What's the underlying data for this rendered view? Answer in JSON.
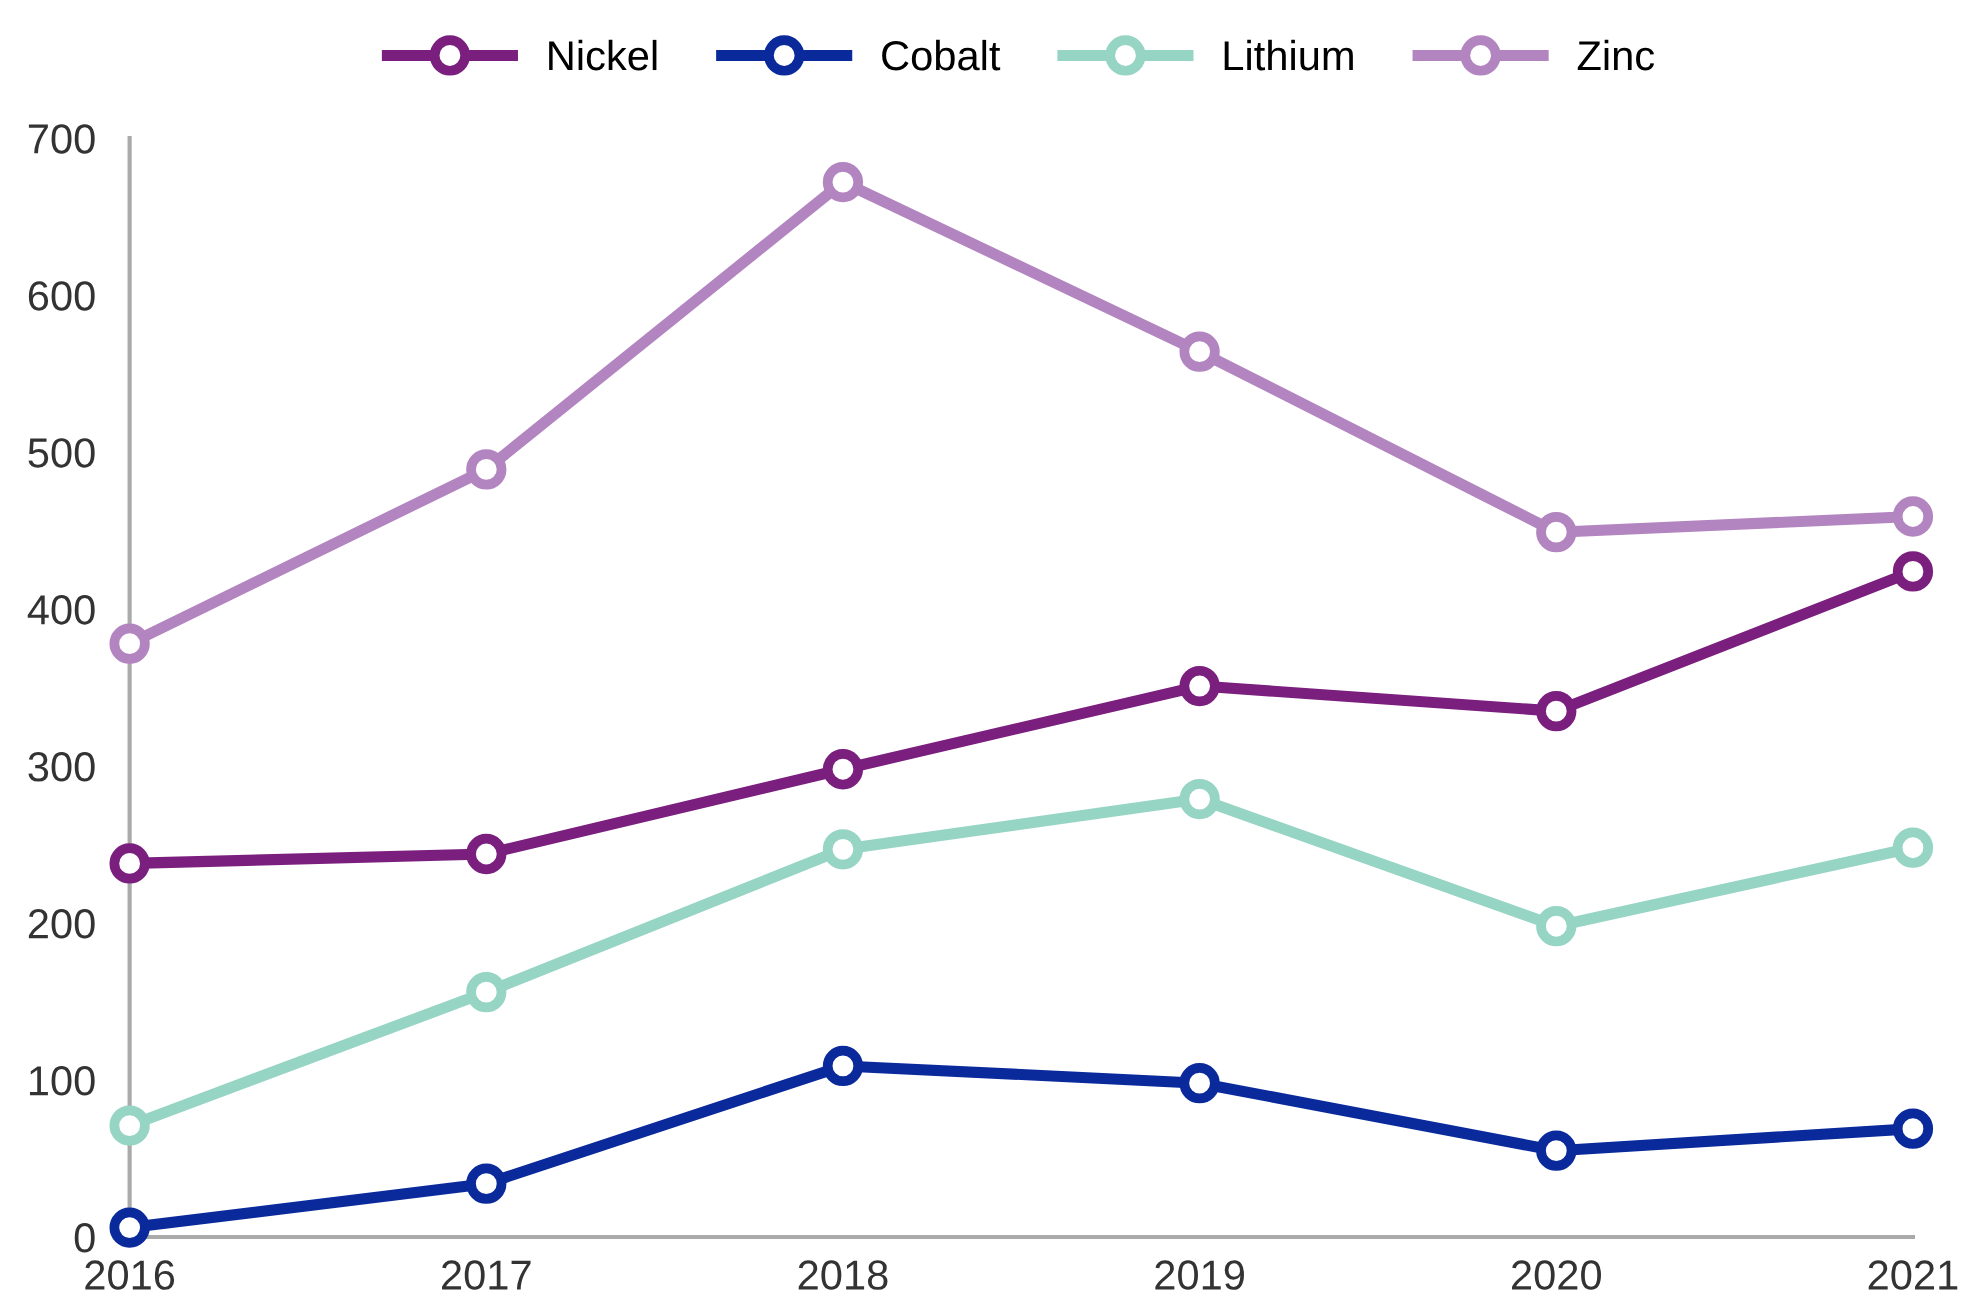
{
  "chart_data": {
    "type": "line",
    "categories": [
      "2016",
      "2017",
      "2018",
      "2019",
      "2020",
      "2021"
    ],
    "series": [
      {
        "name": "Nickel",
        "color": "#7b1f7f",
        "values": [
          238,
          244,
          298,
          351,
          335,
          424
        ]
      },
      {
        "name": "Cobalt",
        "color": "#0a2a9c",
        "values": [
          6,
          34,
          109,
          98,
          55,
          69
        ]
      },
      {
        "name": "Lithium",
        "color": "#96d4c4",
        "values": [
          71,
          156,
          247,
          279,
          198,
          248
        ]
      },
      {
        "name": "Zinc",
        "color": "#b385c0",
        "values": [
          378,
          489,
          672,
          564,
          449,
          459
        ]
      }
    ],
    "ylim": [
      0,
      700
    ],
    "yticks": [
      0,
      100,
      200,
      300,
      400,
      500,
      600,
      700
    ],
    "grid": false,
    "legend": "top",
    "marker": "circle",
    "line_style": "solid"
  }
}
